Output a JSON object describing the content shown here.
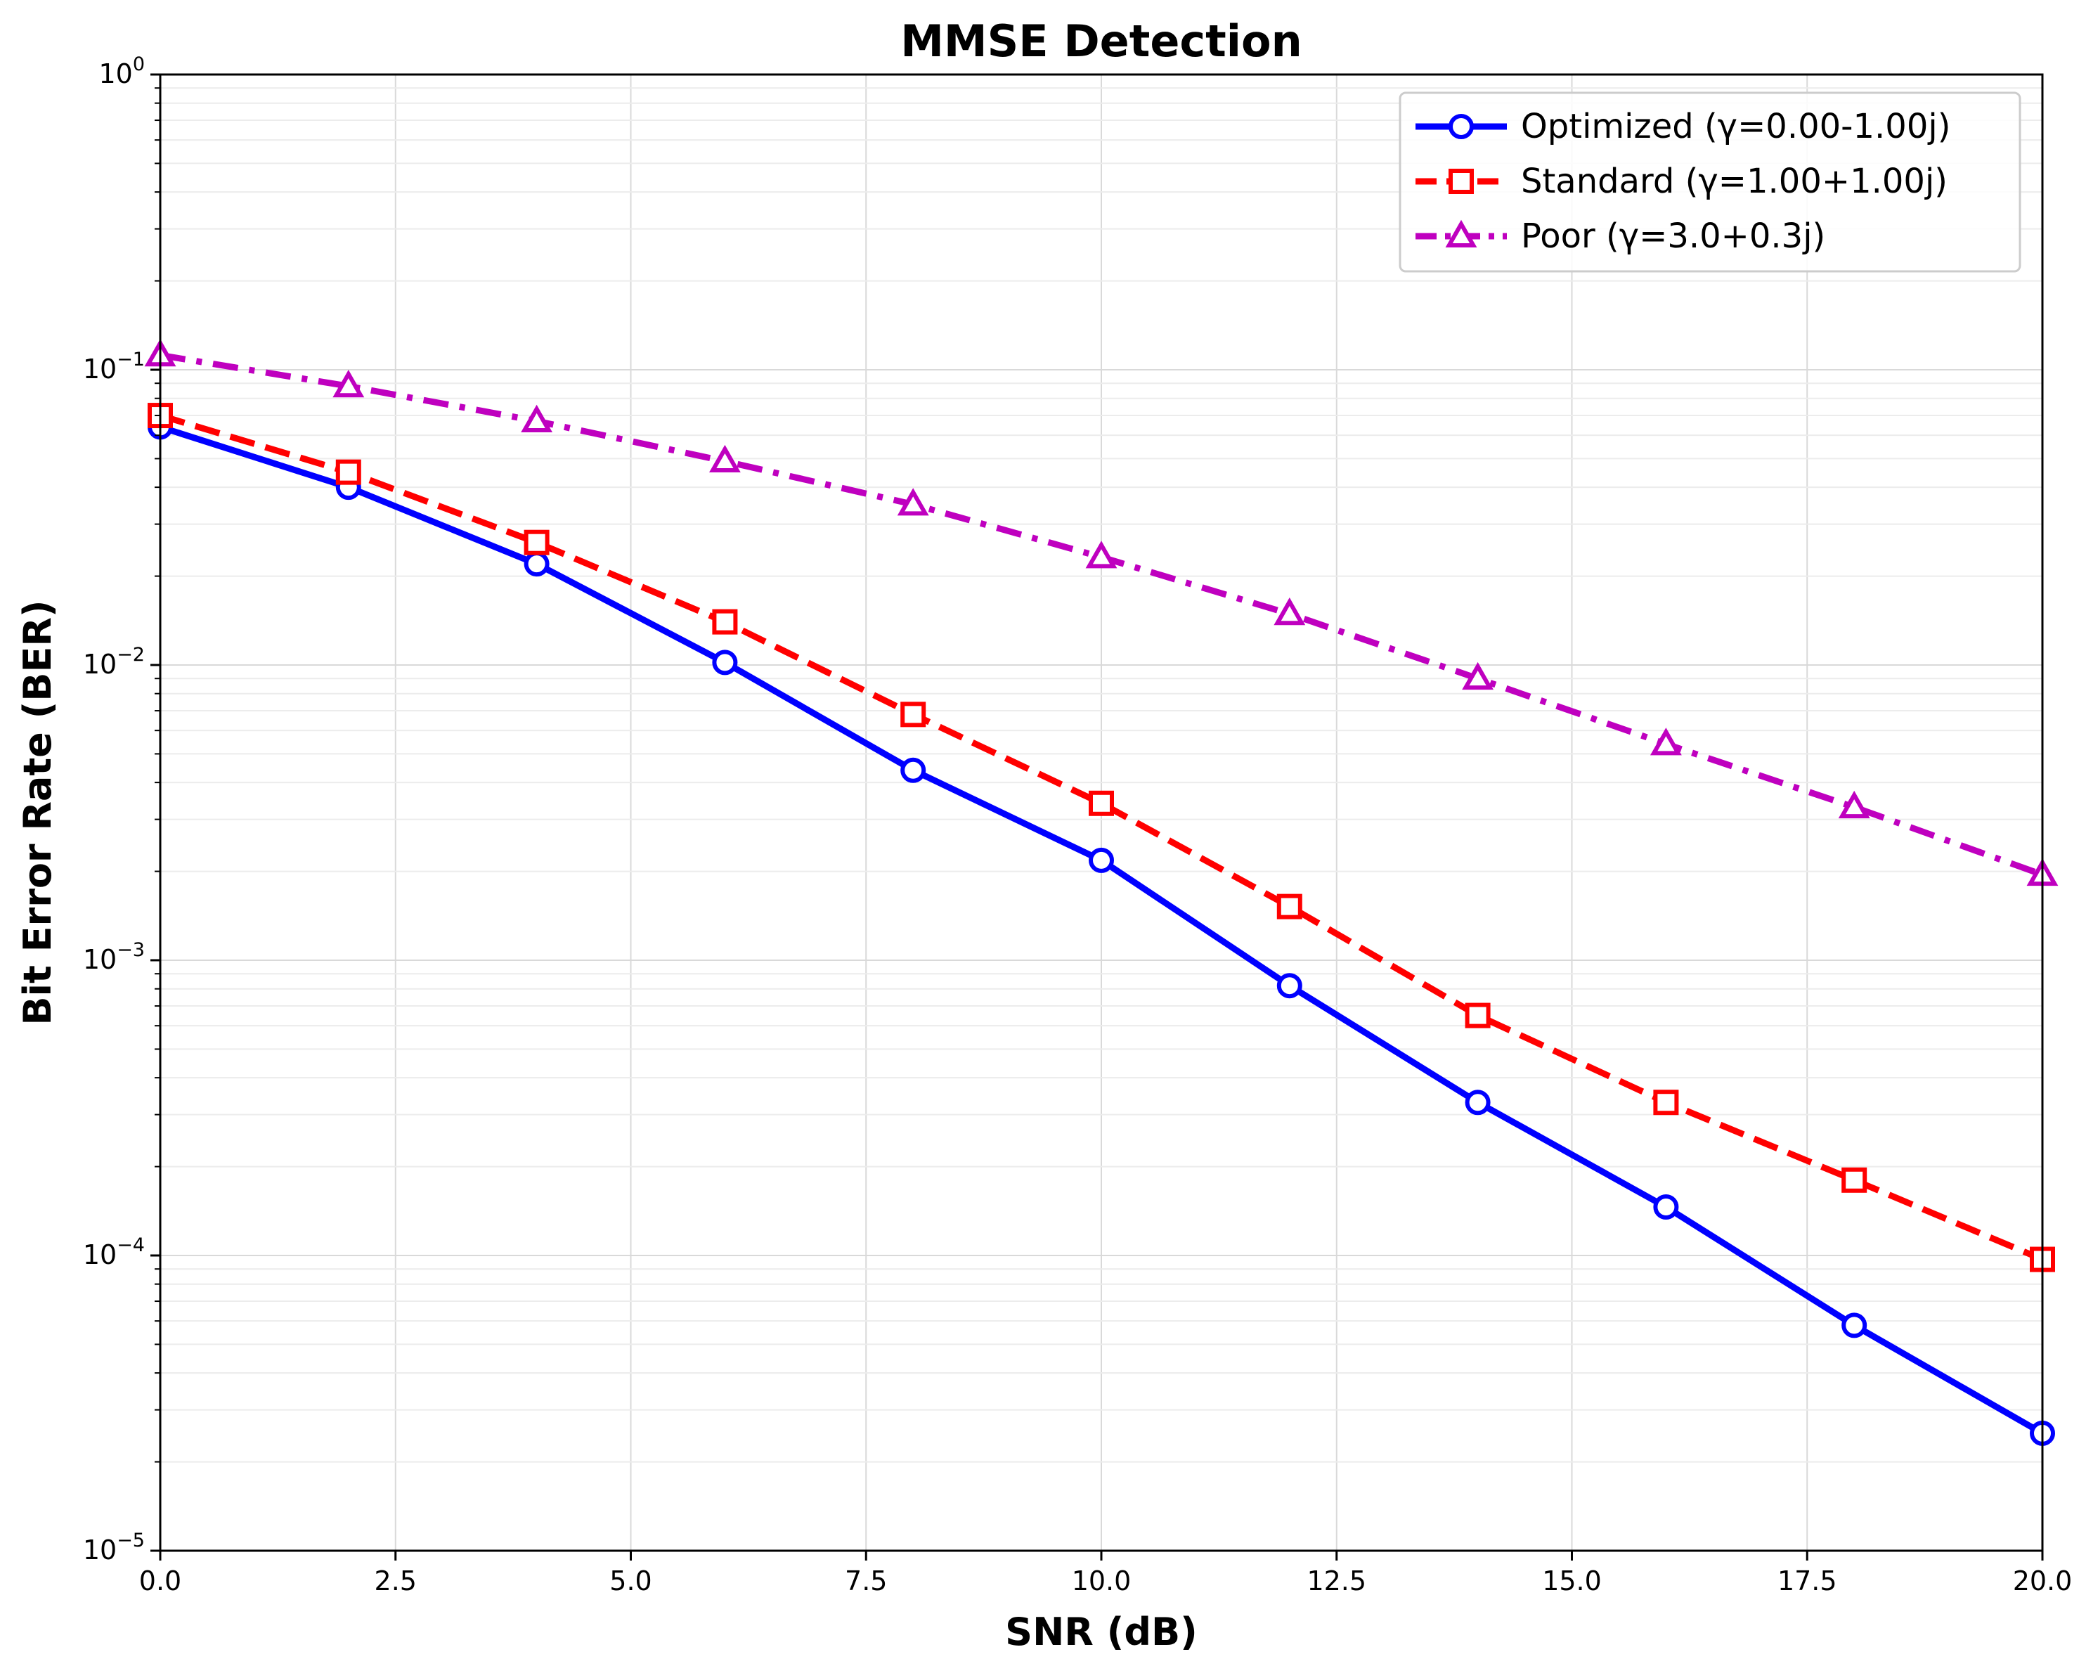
{
  "chart_data": {
    "type": "line",
    "title": "MMSE Detection",
    "xlabel": "SNR (dB)",
    "ylabel": "Bit Error Rate (BER)",
    "xlim": [
      0,
      20
    ],
    "ylim": [
      1e-05,
      1
    ],
    "yscale": "log",
    "grid": true,
    "legend_position": "top-right",
    "x_ticks": [
      "0.0",
      "2.5",
      "5.0",
      "7.5",
      "10.0",
      "12.5",
      "15.0",
      "17.5",
      "20.0"
    ],
    "y_ticks": [
      {
        "base": "10",
        "exp": "0"
      },
      {
        "base": "10",
        "exp": "−1"
      },
      {
        "base": "10",
        "exp": "−2"
      },
      {
        "base": "10",
        "exp": "−3"
      },
      {
        "base": "10",
        "exp": "−4"
      },
      {
        "base": "10",
        "exp": "−5"
      }
    ],
    "x": [
      0,
      2,
      4,
      6,
      8,
      10,
      12,
      14,
      16,
      18,
      20
    ],
    "series": [
      {
        "name": "Optimized (γ=0.00-1.00j)",
        "color": "#0000ff",
        "marker": "circle",
        "linestyle": "solid",
        "values": [
          0.064,
          0.04,
          0.022,
          0.0102,
          0.0044,
          0.00218,
          0.00082,
          0.00033,
          0.000146,
          5.8e-05,
          2.5e-05
        ]
      },
      {
        "name": "Standard (γ=1.00+1.00j)",
        "color": "#ff0000",
        "marker": "square",
        "linestyle": "dashed",
        "values": [
          0.07,
          0.045,
          0.026,
          0.014,
          0.0068,
          0.0034,
          0.00152,
          0.00065,
          0.00033,
          0.00018,
          9.7e-05
        ]
      },
      {
        "name": "Poor (γ=3.0+0.3j)",
        "color": "#bf00bf",
        "marker": "triangle",
        "linestyle": "dashdot",
        "values": [
          0.112,
          0.088,
          0.067,
          0.049,
          0.035,
          0.0232,
          0.0149,
          0.009,
          0.0054,
          0.0033,
          0.00195
        ]
      }
    ]
  }
}
